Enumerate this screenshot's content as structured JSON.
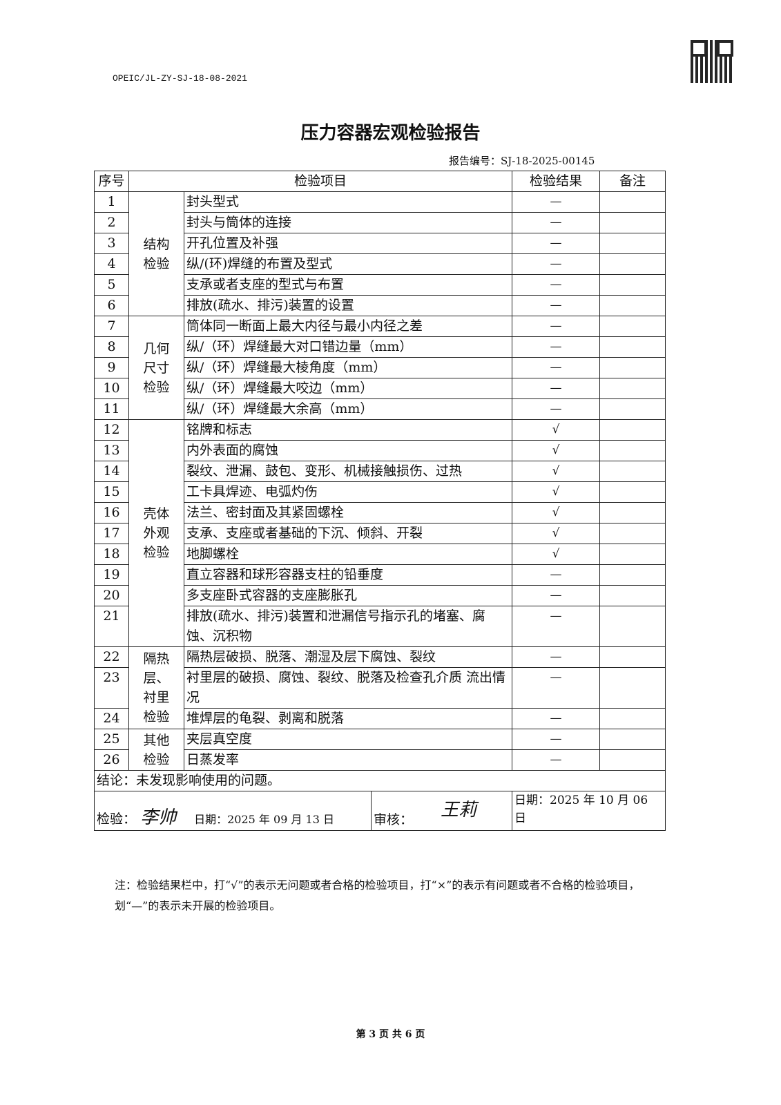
{
  "doc_code": "OPEIC/JL-ZY-SJ-18-08-2021",
  "title": "压力容器宏观检验报告",
  "report_no": "报告编号：SJ-18-2025-00145",
  "headers": {
    "seq": "序号",
    "item": "检验项目",
    "result": "检验结果",
    "remark": "备注"
  },
  "categories": [
    "结构检验",
    "几何尺寸检验",
    "壳体外观检验",
    "隔热层、衬里检验",
    "其他检验"
  ],
  "rows": [
    {
      "n": "1",
      "item": "封头型式",
      "r": "—"
    },
    {
      "n": "2",
      "item": "封头与筒体的连接",
      "r": "—"
    },
    {
      "n": "3",
      "item": "开孔位置及补强",
      "r": "—"
    },
    {
      "n": "4",
      "item": "纵/(环)焊缝的布置及型式",
      "r": "—"
    },
    {
      "n": "5",
      "item": "支承或者支座的型式与布置",
      "r": "—"
    },
    {
      "n": "6",
      "item": "排放(疏水、排污)装置的设置",
      "r": "—"
    },
    {
      "n": "7",
      "item": "筒体同一断面上最大内径与最小内径之差",
      "r": "—"
    },
    {
      "n": "8",
      "item": "纵/（环）焊缝最大对口错边量（mm）",
      "r": "—"
    },
    {
      "n": "9",
      "item": "纵/（环）焊缝最大棱角度（mm）",
      "r": "—"
    },
    {
      "n": "10",
      "item": "纵/（环）焊缝最大咬边（mm）",
      "r": "—"
    },
    {
      "n": "11",
      "item": "纵/（环）焊缝最大余高（mm）",
      "r": "—"
    },
    {
      "n": "12",
      "item": "铭牌和标志",
      "r": "√"
    },
    {
      "n": "13",
      "item": "内外表面的腐蚀",
      "r": "√"
    },
    {
      "n": "14",
      "item": "裂纹、泄漏、鼓包、变形、机械接触损伤、过热",
      "r": "√"
    },
    {
      "n": "15",
      "item": "工卡具焊迹、电弧灼伤",
      "r": "√"
    },
    {
      "n": "16",
      "item": "法兰、密封面及其紧固螺栓",
      "r": "√"
    },
    {
      "n": "17",
      "item": "支承、支座或者基础的下沉、倾斜、开裂",
      "r": "√"
    },
    {
      "n": "18",
      "item": "地脚螺栓",
      "r": "√"
    },
    {
      "n": "19",
      "item": "直立容器和球形容器支柱的铅垂度",
      "r": "—"
    },
    {
      "n": "20",
      "item": "多支座卧式容器的支座膨胀孔",
      "r": "—"
    },
    {
      "n": "21",
      "item": "排放(疏水、排污)装置和泄漏信号指示孔的堵塞、腐蚀、沉积物",
      "r": "—"
    },
    {
      "n": "22",
      "item": "隔热层破损、脱落、潮湿及层下腐蚀、裂纹",
      "r": "—"
    },
    {
      "n": "23",
      "item": "衬里层的破损、腐蚀、裂纹、脱落及检查孔介质 流出情况",
      "r": "—"
    },
    {
      "n": "24",
      "item": "堆焊层的龟裂、剥离和脱落",
      "r": "—"
    },
    {
      "n": "25",
      "item": "夹层真空度",
      "r": "—"
    },
    {
      "n": "26",
      "item": "日蒸发率",
      "r": "—"
    }
  ],
  "conclusion": "结论：未发现影响使用的问题。",
  "inspect_label": "检验：",
  "inspector_signature": "李帅",
  "inspect_date": "日期：2025 年 09 月 13 日",
  "review_label": "审核：",
  "reviewer_signature": "王莉",
  "review_date": "日期：2025 年 10 月 06 日",
  "note": "注：检验结果栏中，打“√”的表示无问题或者合格的检验项目，打“×”的表示有问题或者不合格的检验项目，划“—”的表示未开展的检验项目。",
  "footer": "第 3 页 共 6 页"
}
